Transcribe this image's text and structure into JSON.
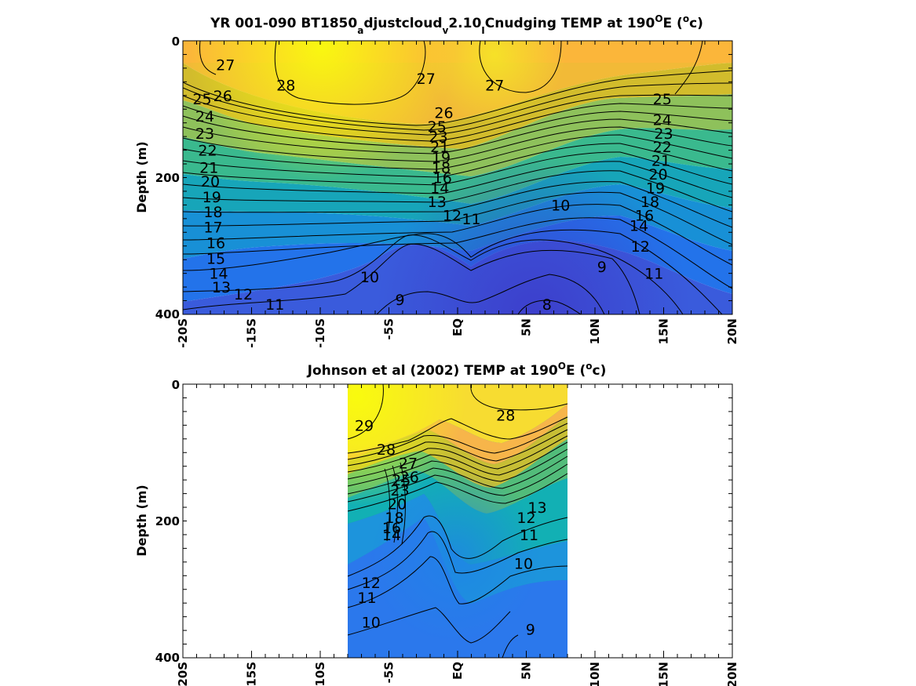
{
  "chart_data": [
    {
      "type": "heatmap",
      "title": {
        "p1": "YR 001-090 BT1850",
        "s1": "a",
        "p2": "djustcloud",
        "s2": "v",
        "p3": "2.10",
        "s3": "I",
        "p4": "Cnudging TEMP at 190",
        "s4": "O",
        "p5": "E (",
        "s5": "o",
        "p6": "c)"
      },
      "ylabel": "Depth (m)",
      "xlim": [
        -20,
        20
      ],
      "ylim": [
        0,
        400
      ],
      "xticks": [
        -20,
        -15,
        -10,
        -5,
        0,
        5,
        10,
        15,
        20
      ],
      "xtick_labels": [
        "-20S",
        "-15S",
        "-10S",
        "-5S",
        "EQ",
        "5N",
        "10N",
        "15N",
        "20N"
      ],
      "ytick_labels": [
        "0",
        "200",
        "400"
      ],
      "data_extent_lat": [
        -20,
        20
      ],
      "grid": false,
      "colormap": "parula",
      "contour_labels": [
        {
          "lat": -16.9,
          "depth": 35,
          "text": "27"
        },
        {
          "lat": -12.5,
          "depth": 65,
          "text": "28"
        },
        {
          "lat": -2.3,
          "depth": 55,
          "text": "27"
        },
        {
          "lat": 2.7,
          "depth": 65,
          "text": "27"
        },
        {
          "lat": -17.1,
          "depth": 80,
          "text": "26"
        },
        {
          "lat": -1.0,
          "depth": 105,
          "text": "26"
        },
        {
          "lat": 14.9,
          "depth": 85,
          "text": "25"
        },
        {
          "lat": -18.6,
          "depth": 85,
          "text": "25"
        },
        {
          "lat": -18.4,
          "depth": 110,
          "text": "24"
        },
        {
          "lat": -18.4,
          "depth": 135,
          "text": "23"
        },
        {
          "lat": -18.2,
          "depth": 160,
          "text": "22"
        },
        {
          "lat": -18.1,
          "depth": 185,
          "text": "21"
        },
        {
          "lat": -18.0,
          "depth": 205,
          "text": "20"
        },
        {
          "lat": -17.9,
          "depth": 228,
          "text": "19"
        },
        {
          "lat": -17.8,
          "depth": 250,
          "text": "18"
        },
        {
          "lat": -17.8,
          "depth": 272,
          "text": "17"
        },
        {
          "lat": -17.6,
          "depth": 295,
          "text": "16"
        },
        {
          "lat": -17.6,
          "depth": 318,
          "text": "15"
        },
        {
          "lat": -17.4,
          "depth": 340,
          "text": "14"
        },
        {
          "lat": -17.2,
          "depth": 360,
          "text": "13"
        },
        {
          "lat": -15.6,
          "depth": 370,
          "text": "12"
        },
        {
          "lat": -13.3,
          "depth": 385,
          "text": "11"
        },
        {
          "lat": -6.4,
          "depth": 345,
          "text": "10"
        },
        {
          "lat": -4.2,
          "depth": 378,
          "text": "9"
        },
        {
          "lat": 6.5,
          "depth": 385,
          "text": "8"
        },
        {
          "lat": 10.5,
          "depth": 330,
          "text": "9"
        },
        {
          "lat": 7.5,
          "depth": 240,
          "text": "10"
        },
        {
          "lat": 1.0,
          "depth": 260,
          "text": "11"
        },
        {
          "lat": -0.4,
          "depth": 255,
          "text": "12"
        },
        {
          "lat": -1.5,
          "depth": 235,
          "text": "13"
        },
        {
          "lat": -1.3,
          "depth": 215,
          "text": "14"
        },
        {
          "lat": -1.1,
          "depth": 200,
          "text": "16"
        },
        {
          "lat": -1.2,
          "depth": 185,
          "text": "18"
        },
        {
          "lat": -1.2,
          "depth": 170,
          "text": "19"
        },
        {
          "lat": -1.3,
          "depth": 155,
          "text": "21"
        },
        {
          "lat": -1.4,
          "depth": 140,
          "text": "23"
        },
        {
          "lat": -1.5,
          "depth": 125,
          "text": "25"
        },
        {
          "lat": 14.9,
          "depth": 115,
          "text": "24"
        },
        {
          "lat": 15.0,
          "depth": 135,
          "text": "23"
        },
        {
          "lat": 14.9,
          "depth": 155,
          "text": "22"
        },
        {
          "lat": 14.8,
          "depth": 175,
          "text": "21"
        },
        {
          "lat": 14.6,
          "depth": 195,
          "text": "20"
        },
        {
          "lat": 14.4,
          "depth": 215,
          "text": "19"
        },
        {
          "lat": 14.0,
          "depth": 235,
          "text": "18"
        },
        {
          "lat": 13.6,
          "depth": 255,
          "text": "16"
        },
        {
          "lat": 13.2,
          "depth": 270,
          "text": "14"
        },
        {
          "lat": 13.3,
          "depth": 300,
          "text": "12"
        },
        {
          "lat": 14.3,
          "depth": 340,
          "text": "11"
        }
      ]
    },
    {
      "type": "heatmap",
      "title": {
        "p1": "Johnson et al (2002) TEMP at 190",
        "s1": "O",
        "p2": "E (",
        "s2": "o",
        "p3": "c)"
      },
      "ylabel": "Depth (m)",
      "xlim": [
        -20,
        20
      ],
      "ylim": [
        0,
        400
      ],
      "xticks": [
        -20,
        -15,
        -10,
        -5,
        0,
        5,
        10,
        15,
        20
      ],
      "xtick_labels": [
        "-20S",
        "-15S",
        "-10S",
        "-5S",
        "EQ",
        "5N",
        "10N",
        "15N",
        "20N"
      ],
      "ytick_labels": [
        "0",
        "200",
        "400"
      ],
      "data_extent_lat": [
        -8,
        8
      ],
      "grid": false,
      "colormap": "parula",
      "contour_labels": [
        {
          "lat": -6.8,
          "depth": 60,
          "text": "29"
        },
        {
          "lat": 3.5,
          "depth": 45,
          "text": "28"
        },
        {
          "lat": -5.2,
          "depth": 95,
          "text": "28"
        },
        {
          "lat": -3.6,
          "depth": 115,
          "text": "27"
        },
        {
          "lat": -3.5,
          "depth": 135,
          "text": "26"
        },
        {
          "lat": -4.1,
          "depth": 140,
          "text": "25"
        },
        {
          "lat": -4.2,
          "depth": 155,
          "text": "23"
        },
        {
          "lat": -4.4,
          "depth": 175,
          "text": "20"
        },
        {
          "lat": -4.6,
          "depth": 195,
          "text": "18"
        },
        {
          "lat": -4.8,
          "depth": 210,
          "text": "16"
        },
        {
          "lat": -4.8,
          "depth": 220,
          "text": "14"
        },
        {
          "lat": 5.8,
          "depth": 180,
          "text": "13"
        },
        {
          "lat": 5.0,
          "depth": 195,
          "text": "12"
        },
        {
          "lat": 5.2,
          "depth": 220,
          "text": "11"
        },
        {
          "lat": 4.8,
          "depth": 262,
          "text": "10"
        },
        {
          "lat": -6.3,
          "depth": 290,
          "text": "12"
        },
        {
          "lat": -6.6,
          "depth": 312,
          "text": "11"
        },
        {
          "lat": -6.3,
          "depth": 348,
          "text": "10"
        },
        {
          "lat": 5.3,
          "depth": 358,
          "text": "9"
        }
      ]
    }
  ]
}
